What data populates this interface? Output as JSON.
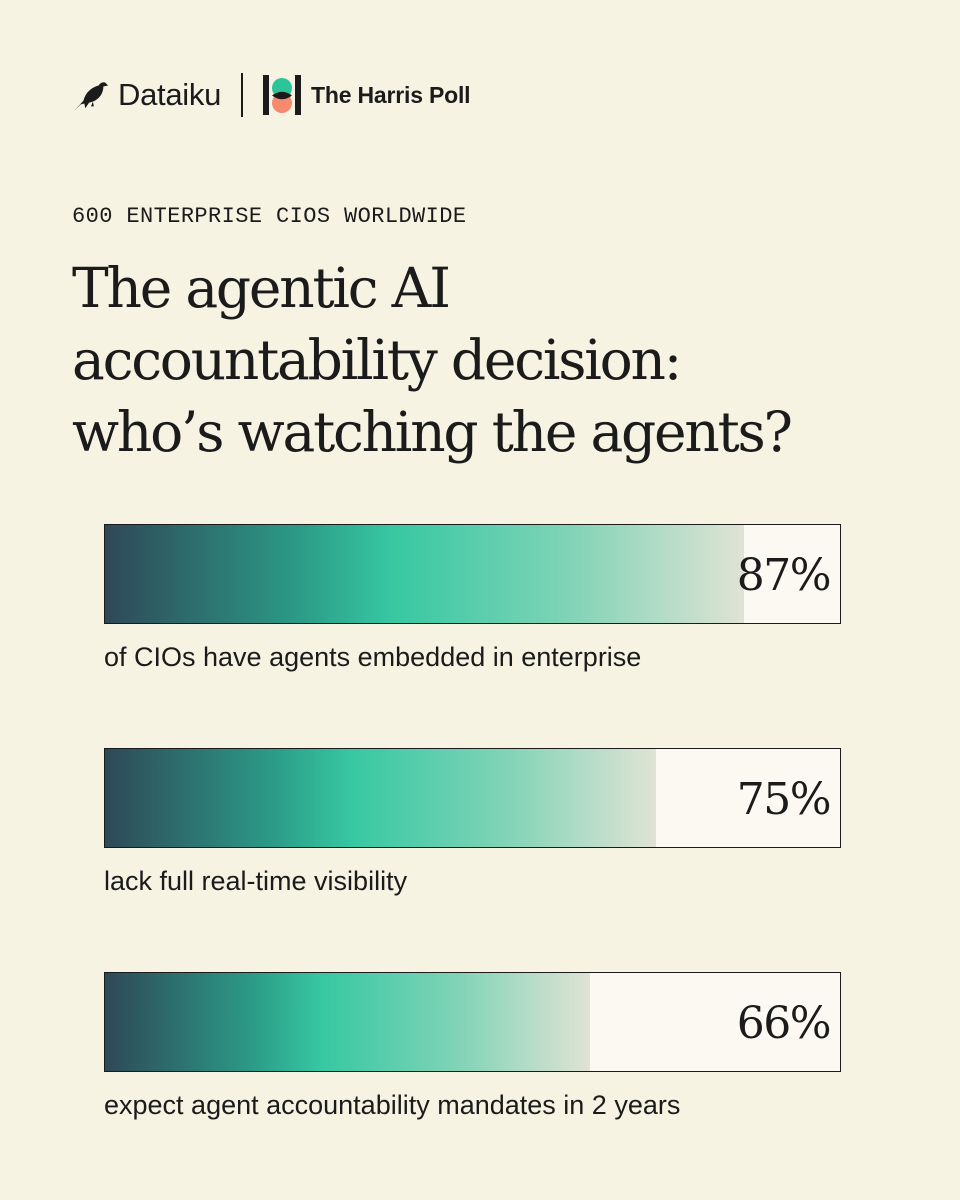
{
  "header": {
    "brand1": "Dataiku",
    "brand2": "The Harris Poll"
  },
  "eyebrow": "600 ENTERPRISE CIOS WORLDWIDE",
  "headline": {
    "lines": [
      "The agentic AI",
      "accountability decision:",
      "who’s watching the agents?"
    ]
  },
  "colors": {
    "background": "#f6f3e3",
    "bar_dark": "#2f4858",
    "bar_accent": "#37c8a2",
    "harris_green": "#2cc59a",
    "harris_coral": "#f58a70"
  },
  "chart_data": {
    "type": "bar",
    "orientation": "horizontal",
    "xlim": [
      0,
      100
    ],
    "unit": "%",
    "values": [
      87,
      75,
      66
    ],
    "value_labels": [
      "87%",
      "75%",
      "66%"
    ],
    "categories": [
      "of CIOs have agents embedded in enterprise",
      "lack full real-time visibility",
      "expect agent accountability mandates in 2 years"
    ]
  }
}
